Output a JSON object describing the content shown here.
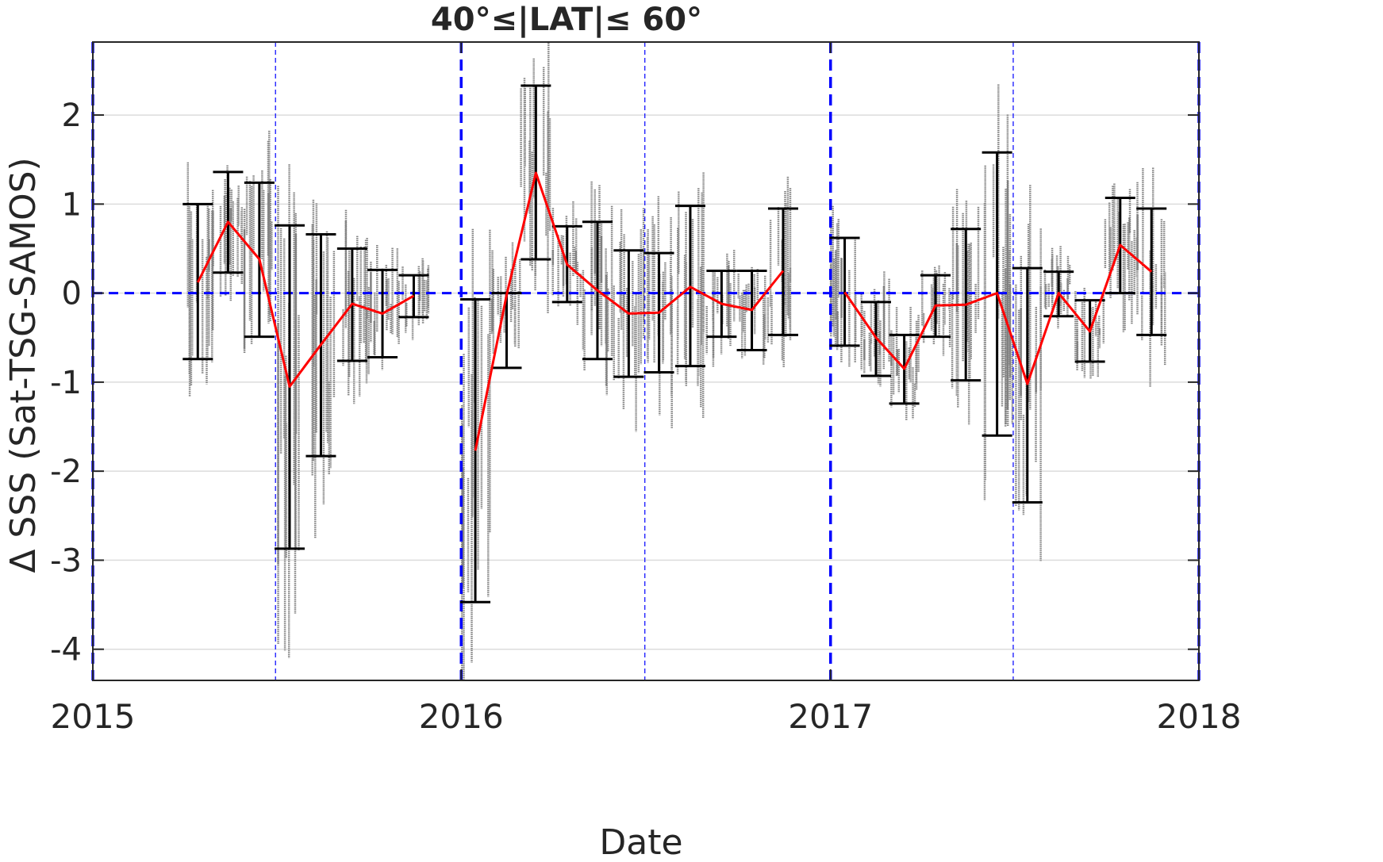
{
  "chart_data": {
    "type": "line",
    "title": "40°≤|LAT|≤ 60°",
    "xlabel": "Date",
    "ylabel": "Δ SSS (Sat-TSG-SAMOS)",
    "xlim": [
      "2015-01-01",
      "2018-01-01"
    ],
    "ylim": [
      -4.35,
      2.82
    ],
    "x_ticks": [
      "2015-01-01",
      "2016-01-01",
      "2017-01-01",
      "2018-01-01"
    ],
    "x_tick_labels": [
      "2015",
      "2016",
      "2017",
      "2018"
    ],
    "y_ticks": [
      -4,
      -3,
      -2,
      -1,
      0,
      1,
      2
    ],
    "y_tick_labels": [
      "-4",
      "-3",
      "-2",
      "-1",
      "0",
      "1",
      "2"
    ],
    "grid": "horizontal",
    "colors": {
      "mean_line": "#ff0000",
      "error_bars": "#000000",
      "scatter": "#808080",
      "reference_lines": "#0000ff",
      "grid": "#dcdcdc"
    },
    "reference_lines": {
      "zero_line_y": 0,
      "year_boundaries": [
        "2015-01-01",
        "2016-01-01",
        "2017-01-01",
        "2018-01-01"
      ],
      "mid_year": [
        "2015-07-01",
        "2016-07-01",
        "2017-07-01"
      ]
    },
    "series": [
      {
        "type": "line_with_errorbars",
        "dates": [
          "2015-04-15",
          "2015-05-15",
          "2015-06-15",
          "2015-07-15",
          "2015-08-15",
          "2015-09-15",
          "2015-10-15",
          "2015-11-15",
          "2016-01-15",
          "2016-02-15",
          "2016-03-15",
          "2016-04-15",
          "2016-05-15",
          "2016-06-15",
          "2016-07-15",
          "2016-08-15",
          "2016-09-15",
          "2016-10-15",
          "2016-11-15",
          "2017-01-15",
          "2017-02-15",
          "2017-03-15",
          "2017-04-15",
          "2017-05-15",
          "2017-06-15",
          "2017-07-15",
          "2017-08-15",
          "2017-09-15",
          "2017-10-15",
          "2017-11-15"
        ],
        "mean": [
          0.12,
          0.8,
          0.38,
          -1.05,
          -0.58,
          -0.12,
          -0.23,
          -0.03,
          -1.77,
          -0.02,
          1.35,
          0.32,
          0.03,
          -0.23,
          -0.22,
          0.07,
          -0.12,
          -0.19,
          0.25,
          0.01,
          -0.5,
          -0.85,
          -0.14,
          -0.13,
          0.0,
          -1.02,
          0.0,
          -0.43,
          0.54,
          0.24
        ],
        "upper": [
          1.0,
          1.36,
          1.24,
          0.76,
          0.66,
          0.5,
          0.26,
          0.2,
          -0.07,
          0.0,
          2.33,
          0.75,
          0.8,
          0.48,
          0.45,
          0.98,
          0.25,
          0.25,
          0.95,
          0.62,
          -0.1,
          -0.47,
          0.2,
          0.72,
          1.58,
          0.28,
          0.24,
          -0.08,
          1.07,
          0.95
        ],
        "lower": [
          -0.74,
          0.23,
          -0.49,
          -2.87,
          -1.83,
          -0.76,
          -0.72,
          -0.27,
          -3.47,
          -0.84,
          0.38,
          -0.1,
          -0.74,
          -0.94,
          -0.89,
          -0.82,
          -0.49,
          -0.64,
          -0.47,
          -0.59,
          -0.93,
          -1.24,
          -0.49,
          -0.98,
          -1.6,
          -2.35,
          -0.26,
          -0.77,
          0.0,
          -0.47
        ]
      }
    ]
  }
}
